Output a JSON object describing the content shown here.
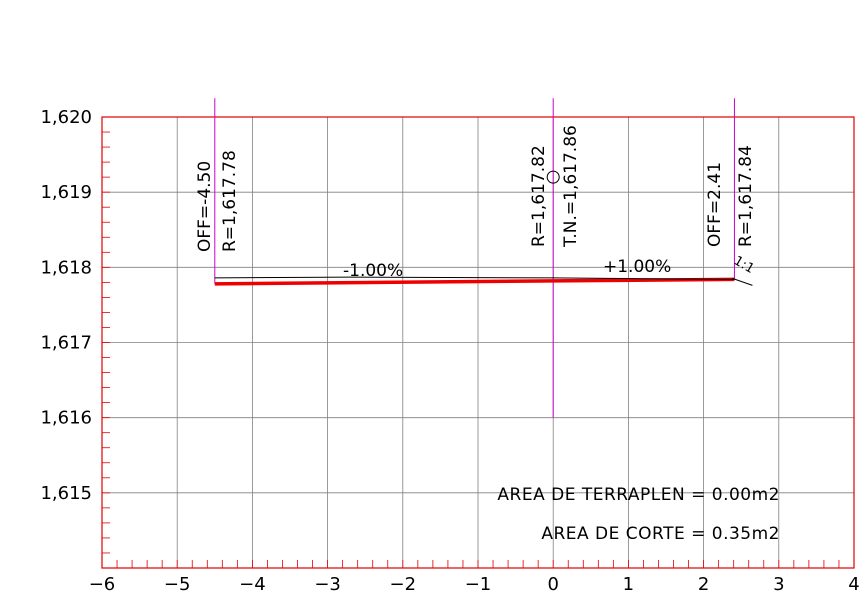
{
  "chart_data": {
    "type": "line",
    "xlim": [
      -6,
      4
    ],
    "ylim": [
      1614,
      1620
    ],
    "x_ticks": [
      "-6",
      "-5",
      "-4",
      "-3",
      "-2",
      "-1",
      "0",
      "1",
      "2",
      "3",
      "4"
    ],
    "y_ticks": [
      {
        "value": 1615,
        "label": "1,615"
      },
      {
        "value": 1616,
        "label": "1,616"
      },
      {
        "value": 1617,
        "label": "1,617"
      },
      {
        "value": 1618,
        "label": "1,618"
      },
      {
        "value": 1619,
        "label": "1,619"
      },
      {
        "value": 1620,
        "label": "1,620"
      }
    ],
    "grid": true,
    "series": [
      {
        "role": "design",
        "color": "#ee0000",
        "x": [
          -4.5,
          0,
          2.41
        ],
        "y": [
          1617.78,
          1617.82,
          1617.84
        ]
      },
      {
        "role": "terrain",
        "color": "#000000",
        "x": [
          -4.5,
          -2.7,
          0,
          2.41
        ],
        "y": [
          1617.86,
          1617.87,
          1617.86,
          1617.84
        ]
      }
    ],
    "offset_lines": [
      {
        "x": 2.41,
        "y_top": 1620.25,
        "y_bottom": 1617.84,
        "color": "#cc00cc"
      },
      {
        "x": 0,
        "y_top": 1620.25,
        "y_bottom": 1616.0,
        "color": "#cc00cc"
      },
      {
        "x": -4.5,
        "y_top": 1620.25,
        "y_bottom": 1617.78,
        "color": "#cc00cc"
      }
    ],
    "annotations": {
      "left_off": "OFF=-4.50",
      "left_r": "R=1,617.78",
      "center_r": "R=1,617.82",
      "center_tn": "T.N.=1,617.86",
      "right_off": "OFF=2.41",
      "right_r": "R=1,617.84",
      "slope_left": "-1.00%",
      "slope_right": "+1.00%",
      "slope_ratio": "1:1"
    },
    "areas": {
      "fill": "AREA DE TERRAPLEN  =  0.00m2",
      "cut": "AREA DE CORTE  =  0.35m2"
    }
  },
  "colors": {
    "frame": "#e00000",
    "grid": "#808080",
    "design": "#ee0000",
    "offset": "#cc00cc",
    "ticks": "#e00000"
  }
}
